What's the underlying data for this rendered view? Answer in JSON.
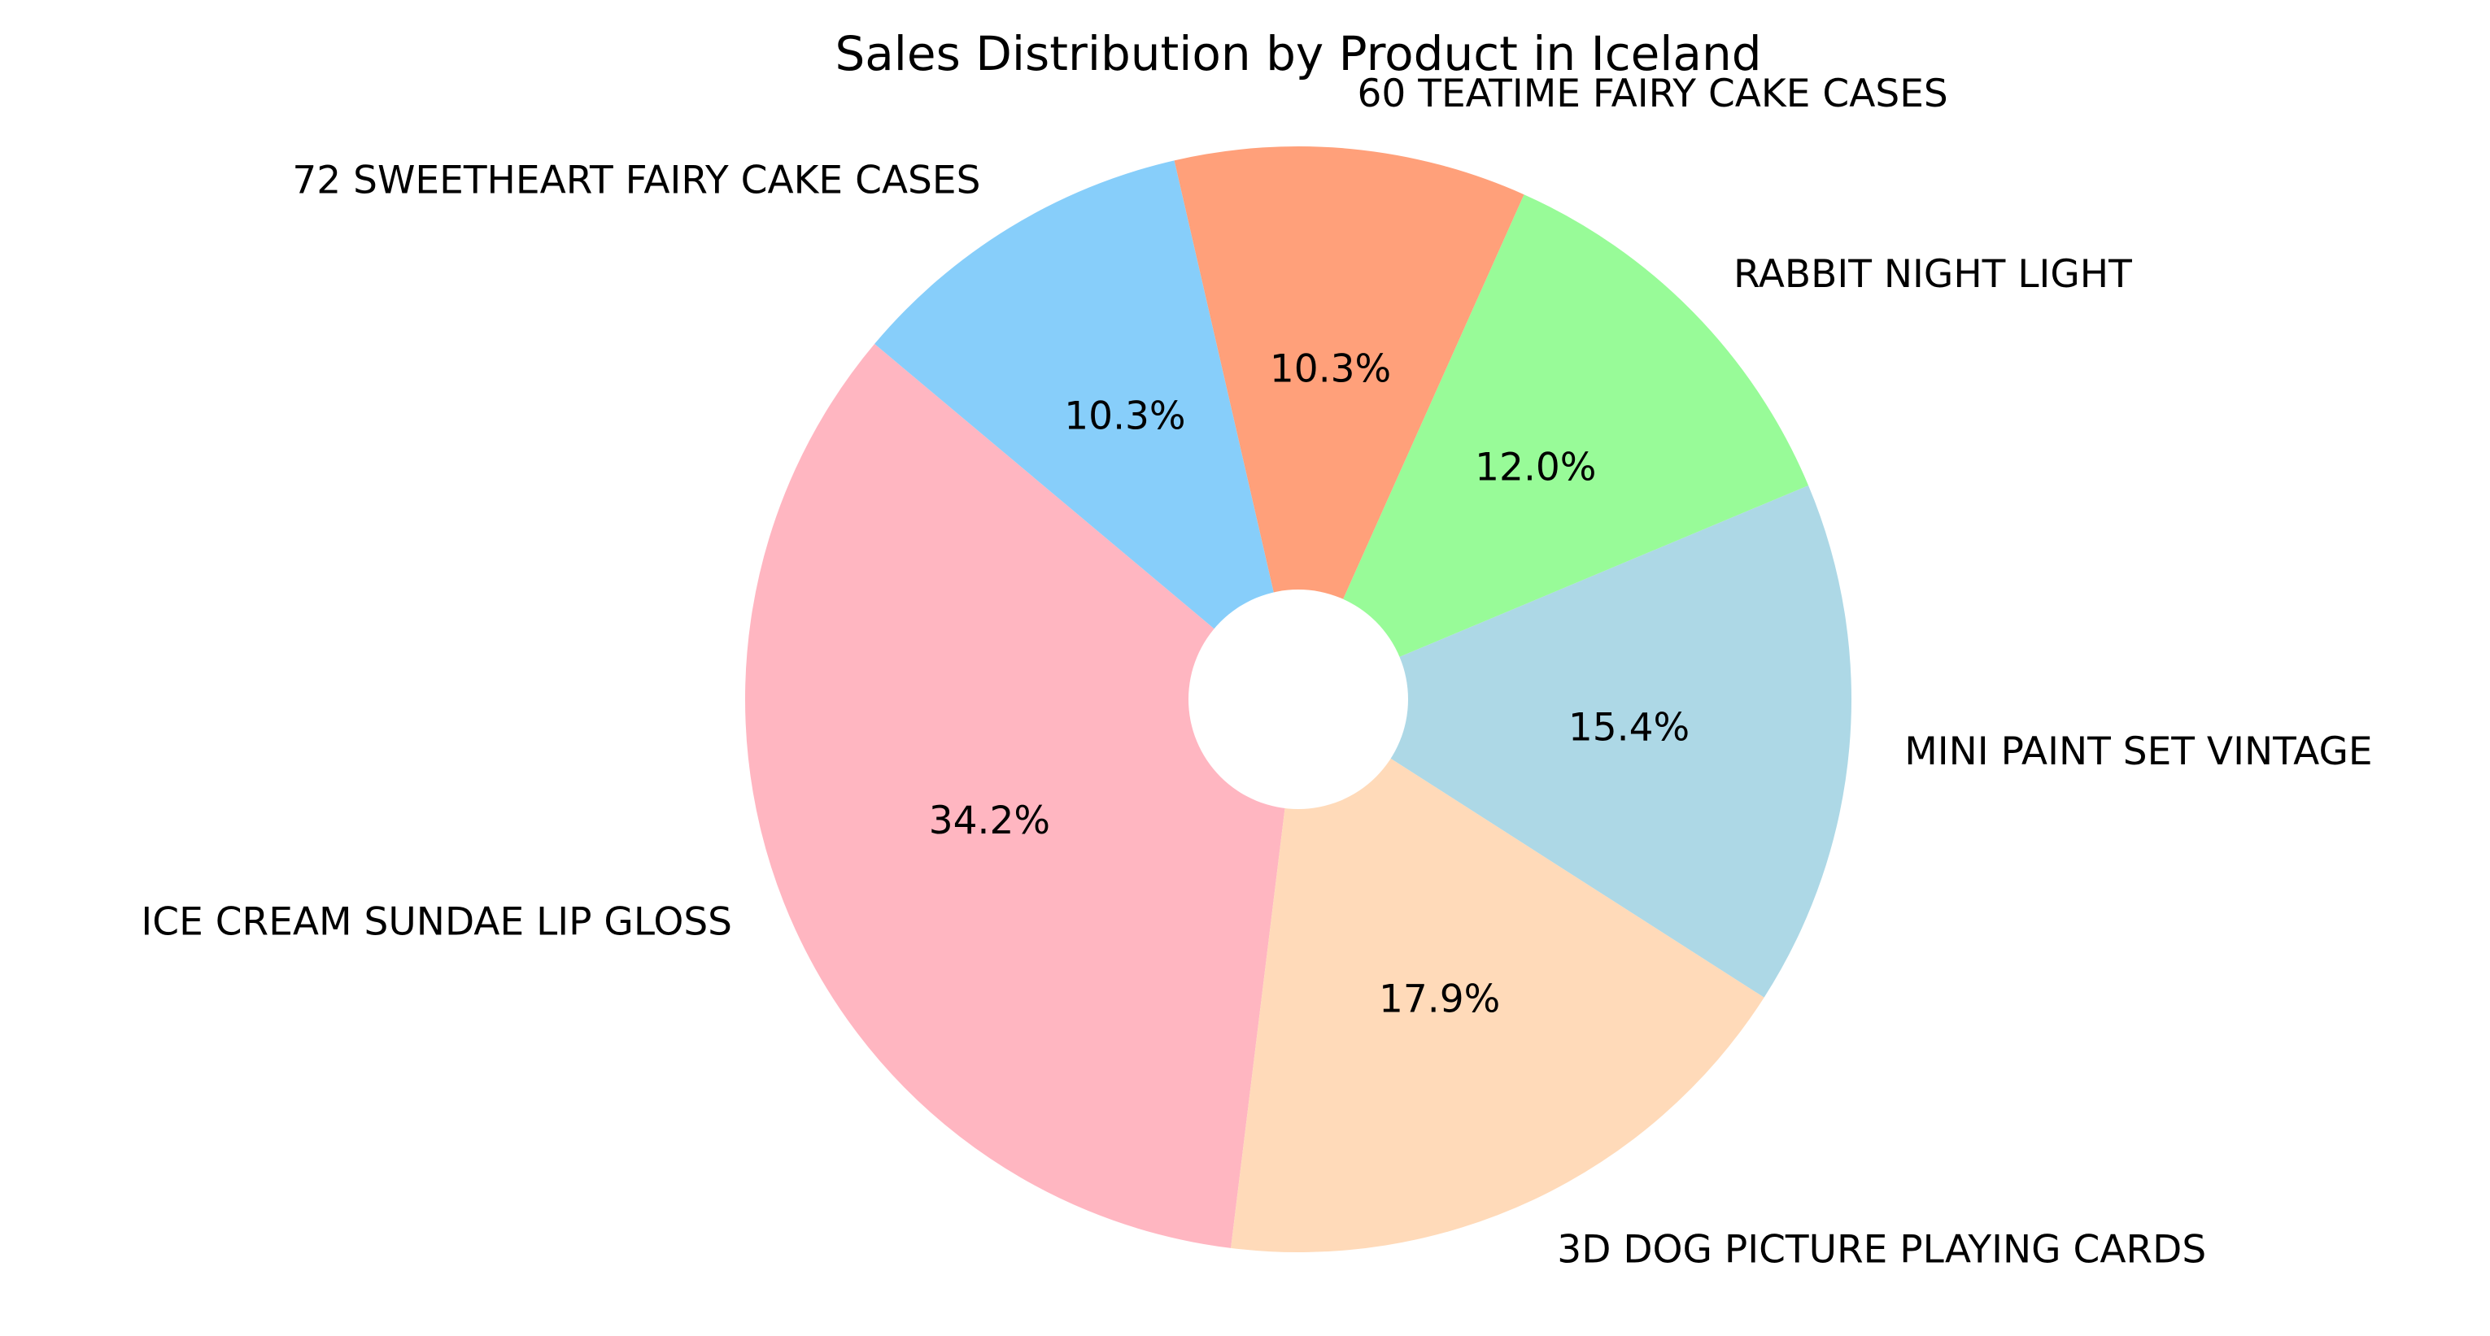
{
  "chart_data": {
    "type": "pie",
    "title": "Sales Distribution by Product in Iceland",
    "categories": [
      "ICE CREAM SUNDAE LIP GLOSS",
      "3D DOG PICTURE PLAYING CARDS",
      "MINI PAINT SET VINTAGE",
      "RABBIT NIGHT LIGHT",
      "60 TEATIME FAIRY CAKE CASES",
      "72 SWEETHEART FAIRY CAKE CASES"
    ],
    "values": [
      34.2,
      17.9,
      15.4,
      12.0,
      10.3,
      10.3
    ],
    "value_labels": [
      "34.2%",
      "17.9%",
      "15.4%",
      "12.0%",
      "10.3%",
      "10.3%"
    ],
    "colors": [
      "#ffb6c1",
      "#ffdab9",
      "#add8e6",
      "#98fb98",
      "#ffa07a",
      "#87cefa"
    ],
    "start_angle_deg": 140,
    "direction": "counterclockwise",
    "donut_hole": true,
    "legend": "none"
  }
}
